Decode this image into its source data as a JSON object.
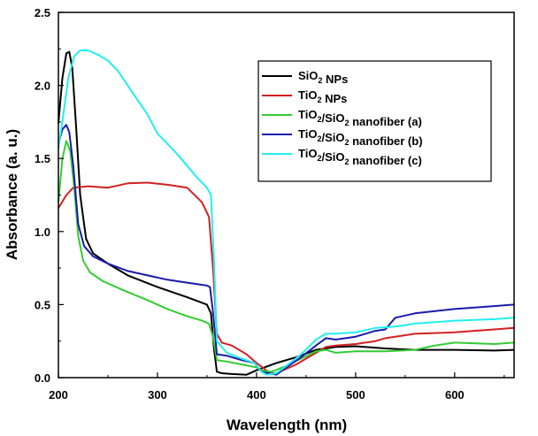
{
  "chart_data": {
    "type": "line",
    "xlabel": "Wavelength (nm)",
    "ylabel": "Absorbance (a. u.)",
    "xlim": [
      200,
      660
    ],
    "ylim": [
      0.0,
      2.5
    ],
    "x_ticks": [
      200,
      300,
      400,
      500,
      600
    ],
    "x_tick_labels": [
      "200",
      "300",
      "400",
      "500",
      "600"
    ],
    "y_ticks": [
      0.0,
      0.5,
      1.0,
      1.5,
      2.0,
      2.5
    ],
    "y_tick_labels": [
      "0.0",
      "0.5",
      "1.0",
      "1.5",
      "2.0",
      "2.5"
    ],
    "grid": false,
    "legend_position": "top-right",
    "series": [
      {
        "name": "SiO2 NPs",
        "legend_main": "SiO",
        "legend_sub": "2",
        "legend_rest": " NPs",
        "color": "#000000",
        "points": [
          [
            200,
            1.74
          ],
          [
            204,
            2.05
          ],
          [
            208,
            2.22
          ],
          [
            211,
            2.23
          ],
          [
            214,
            2.12
          ],
          [
            218,
            1.7
          ],
          [
            222,
            1.25
          ],
          [
            228,
            0.95
          ],
          [
            235,
            0.85
          ],
          [
            250,
            0.78
          ],
          [
            270,
            0.7
          ],
          [
            300,
            0.62
          ],
          [
            330,
            0.55
          ],
          [
            350,
            0.5
          ],
          [
            354,
            0.44
          ],
          [
            357,
            0.2
          ],
          [
            360,
            0.04
          ],
          [
            365,
            0.03
          ],
          [
            375,
            0.025
          ],
          [
            390,
            0.02
          ],
          [
            400,
            0.05
          ],
          [
            420,
            0.1
          ],
          [
            440,
            0.14
          ],
          [
            460,
            0.19
          ],
          [
            480,
            0.21
          ],
          [
            500,
            0.215
          ],
          [
            530,
            0.2
          ],
          [
            560,
            0.19
          ],
          [
            600,
            0.19
          ],
          [
            640,
            0.185
          ],
          [
            660,
            0.19
          ]
        ]
      },
      {
        "name": "TiO2 NPs",
        "legend_main": "TiO",
        "legend_sub": "2",
        "legend_rest": " NPs",
        "color": "#d32020",
        "points": [
          [
            200,
            1.16
          ],
          [
            208,
            1.25
          ],
          [
            215,
            1.3
          ],
          [
            230,
            1.31
          ],
          [
            250,
            1.3
          ],
          [
            270,
            1.33
          ],
          [
            290,
            1.335
          ],
          [
            310,
            1.32
          ],
          [
            330,
            1.3
          ],
          [
            345,
            1.2
          ],
          [
            352,
            1.1
          ],
          [
            356,
            0.75
          ],
          [
            360,
            0.3
          ],
          [
            365,
            0.24
          ],
          [
            375,
            0.22
          ],
          [
            390,
            0.16
          ],
          [
            400,
            0.1
          ],
          [
            408,
            0.06
          ],
          [
            413,
            0.03
          ],
          [
            420,
            0.03
          ],
          [
            430,
            0.06
          ],
          [
            440,
            0.09
          ],
          [
            450,
            0.13
          ],
          [
            460,
            0.17
          ],
          [
            470,
            0.21
          ],
          [
            480,
            0.22
          ],
          [
            500,
            0.23
          ],
          [
            520,
            0.25
          ],
          [
            530,
            0.27
          ],
          [
            540,
            0.28
          ],
          [
            560,
            0.3
          ],
          [
            600,
            0.31
          ],
          [
            640,
            0.33
          ],
          [
            660,
            0.34
          ]
        ]
      },
      {
        "name": "TiO2/SiO2 nanofiber (a)",
        "legend_main": "TiO",
        "legend_sub": "2",
        "legend_mid": "/SiO",
        "legend_sub2": "2",
        "legend_rest": " nanofiber (a)",
        "color": "#33cc33",
        "points": [
          [
            200,
            1.2
          ],
          [
            204,
            1.5
          ],
          [
            208,
            1.62
          ],
          [
            212,
            1.55
          ],
          [
            216,
            1.3
          ],
          [
            220,
            0.97
          ],
          [
            225,
            0.8
          ],
          [
            232,
            0.72
          ],
          [
            245,
            0.66
          ],
          [
            265,
            0.6
          ],
          [
            290,
            0.53
          ],
          [
            310,
            0.47
          ],
          [
            330,
            0.42
          ],
          [
            345,
            0.39
          ],
          [
            352,
            0.37
          ],
          [
            356,
            0.28
          ],
          [
            360,
            0.12
          ],
          [
            370,
            0.11
          ],
          [
            385,
            0.09
          ],
          [
            400,
            0.07
          ],
          [
            405,
            0.05
          ],
          [
            415,
            0.04
          ],
          [
            430,
            0.08
          ],
          [
            445,
            0.13
          ],
          [
            460,
            0.18
          ],
          [
            470,
            0.19
          ],
          [
            480,
            0.17
          ],
          [
            500,
            0.18
          ],
          [
            530,
            0.18
          ],
          [
            560,
            0.19
          ],
          [
            580,
            0.22
          ],
          [
            600,
            0.24
          ],
          [
            640,
            0.23
          ],
          [
            660,
            0.24
          ]
        ]
      },
      {
        "name": "TiO2/SiO2 nanofiber (b)",
        "legend_main": "TiO",
        "legend_sub": "2",
        "legend_mid": "/SiO",
        "legend_sub2": "2",
        "legend_rest": " nanofiber (b)",
        "color": "#1a1aaa",
        "points": [
          [
            200,
            1.6
          ],
          [
            204,
            1.7
          ],
          [
            208,
            1.73
          ],
          [
            211,
            1.68
          ],
          [
            215,
            1.45
          ],
          [
            220,
            1.05
          ],
          [
            226,
            0.9
          ],
          [
            235,
            0.83
          ],
          [
            250,
            0.78
          ],
          [
            270,
            0.73
          ],
          [
            290,
            0.7
          ],
          [
            310,
            0.67
          ],
          [
            330,
            0.65
          ],
          [
            350,
            0.63
          ],
          [
            353,
            0.62
          ],
          [
            356,
            0.45
          ],
          [
            360,
            0.16
          ],
          [
            370,
            0.15
          ],
          [
            385,
            0.12
          ],
          [
            398,
            0.1
          ],
          [
            405,
            0.04
          ],
          [
            412,
            0.03
          ],
          [
            420,
            0.02
          ],
          [
            430,
            0.07
          ],
          [
            445,
            0.14
          ],
          [
            460,
            0.22
          ],
          [
            470,
            0.27
          ],
          [
            480,
            0.26
          ],
          [
            500,
            0.28
          ],
          [
            520,
            0.32
          ],
          [
            530,
            0.33
          ],
          [
            535,
            0.37
          ],
          [
            540,
            0.41
          ],
          [
            560,
            0.44
          ],
          [
            600,
            0.47
          ],
          [
            640,
            0.49
          ],
          [
            660,
            0.5
          ]
        ]
      },
      {
        "name": "TiO2/SiO2 nanofiber (c)",
        "legend_main": "TiO",
        "legend_sub": "2",
        "legend_mid": "/SiO",
        "legend_sub2": "2",
        "legend_rest": " nanofiber (c)",
        "color": "#22eeee",
        "points": [
          [
            200,
            1.57
          ],
          [
            205,
            1.8
          ],
          [
            210,
            2.05
          ],
          [
            216,
            2.2
          ],
          [
            222,
            2.24
          ],
          [
            230,
            2.24
          ],
          [
            240,
            2.21
          ],
          [
            250,
            2.17
          ],
          [
            260,
            2.1
          ],
          [
            275,
            1.95
          ],
          [
            290,
            1.8
          ],
          [
            300,
            1.67
          ],
          [
            320,
            1.53
          ],
          [
            340,
            1.37
          ],
          [
            350,
            1.3
          ],
          [
            354,
            1.25
          ],
          [
            357,
            0.8
          ],
          [
            360,
            0.25
          ],
          [
            370,
            0.17
          ],
          [
            385,
            0.13
          ],
          [
            398,
            0.1
          ],
          [
            405,
            0.04
          ],
          [
            410,
            0.02
          ],
          [
            420,
            0.03
          ],
          [
            430,
            0.08
          ],
          [
            445,
            0.16
          ],
          [
            460,
            0.26
          ],
          [
            470,
            0.3
          ],
          [
            480,
            0.3
          ],
          [
            500,
            0.31
          ],
          [
            520,
            0.34
          ],
          [
            540,
            0.35
          ],
          [
            560,
            0.37
          ],
          [
            600,
            0.39
          ],
          [
            640,
            0.4
          ],
          [
            660,
            0.41
          ]
        ]
      }
    ]
  }
}
